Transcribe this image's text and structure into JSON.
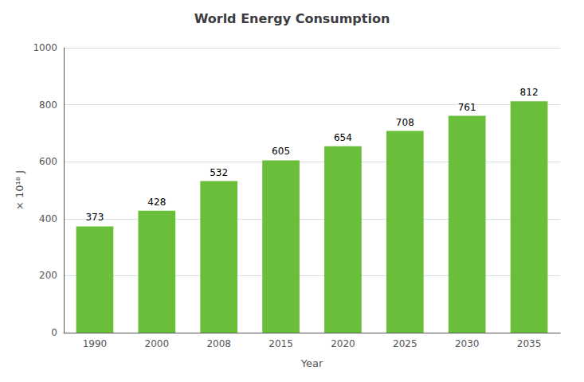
{
  "chart_data": {
    "type": "bar",
    "title": "World Energy Consumption",
    "xlabel": "Year",
    "ylabel": "× 10¹⁸ J",
    "categories": [
      "1990",
      "2000",
      "2008",
      "2015",
      "2020",
      "2025",
      "2030",
      "2035"
    ],
    "values": [
      373,
      428,
      532,
      605,
      654,
      708,
      761,
      812
    ],
    "color": "#6abf3a",
    "ylim": [
      0,
      1000
    ],
    "yticks": [
      0,
      200,
      400,
      600,
      800,
      1000
    ],
    "grid": true,
    "data_labels": true
  }
}
